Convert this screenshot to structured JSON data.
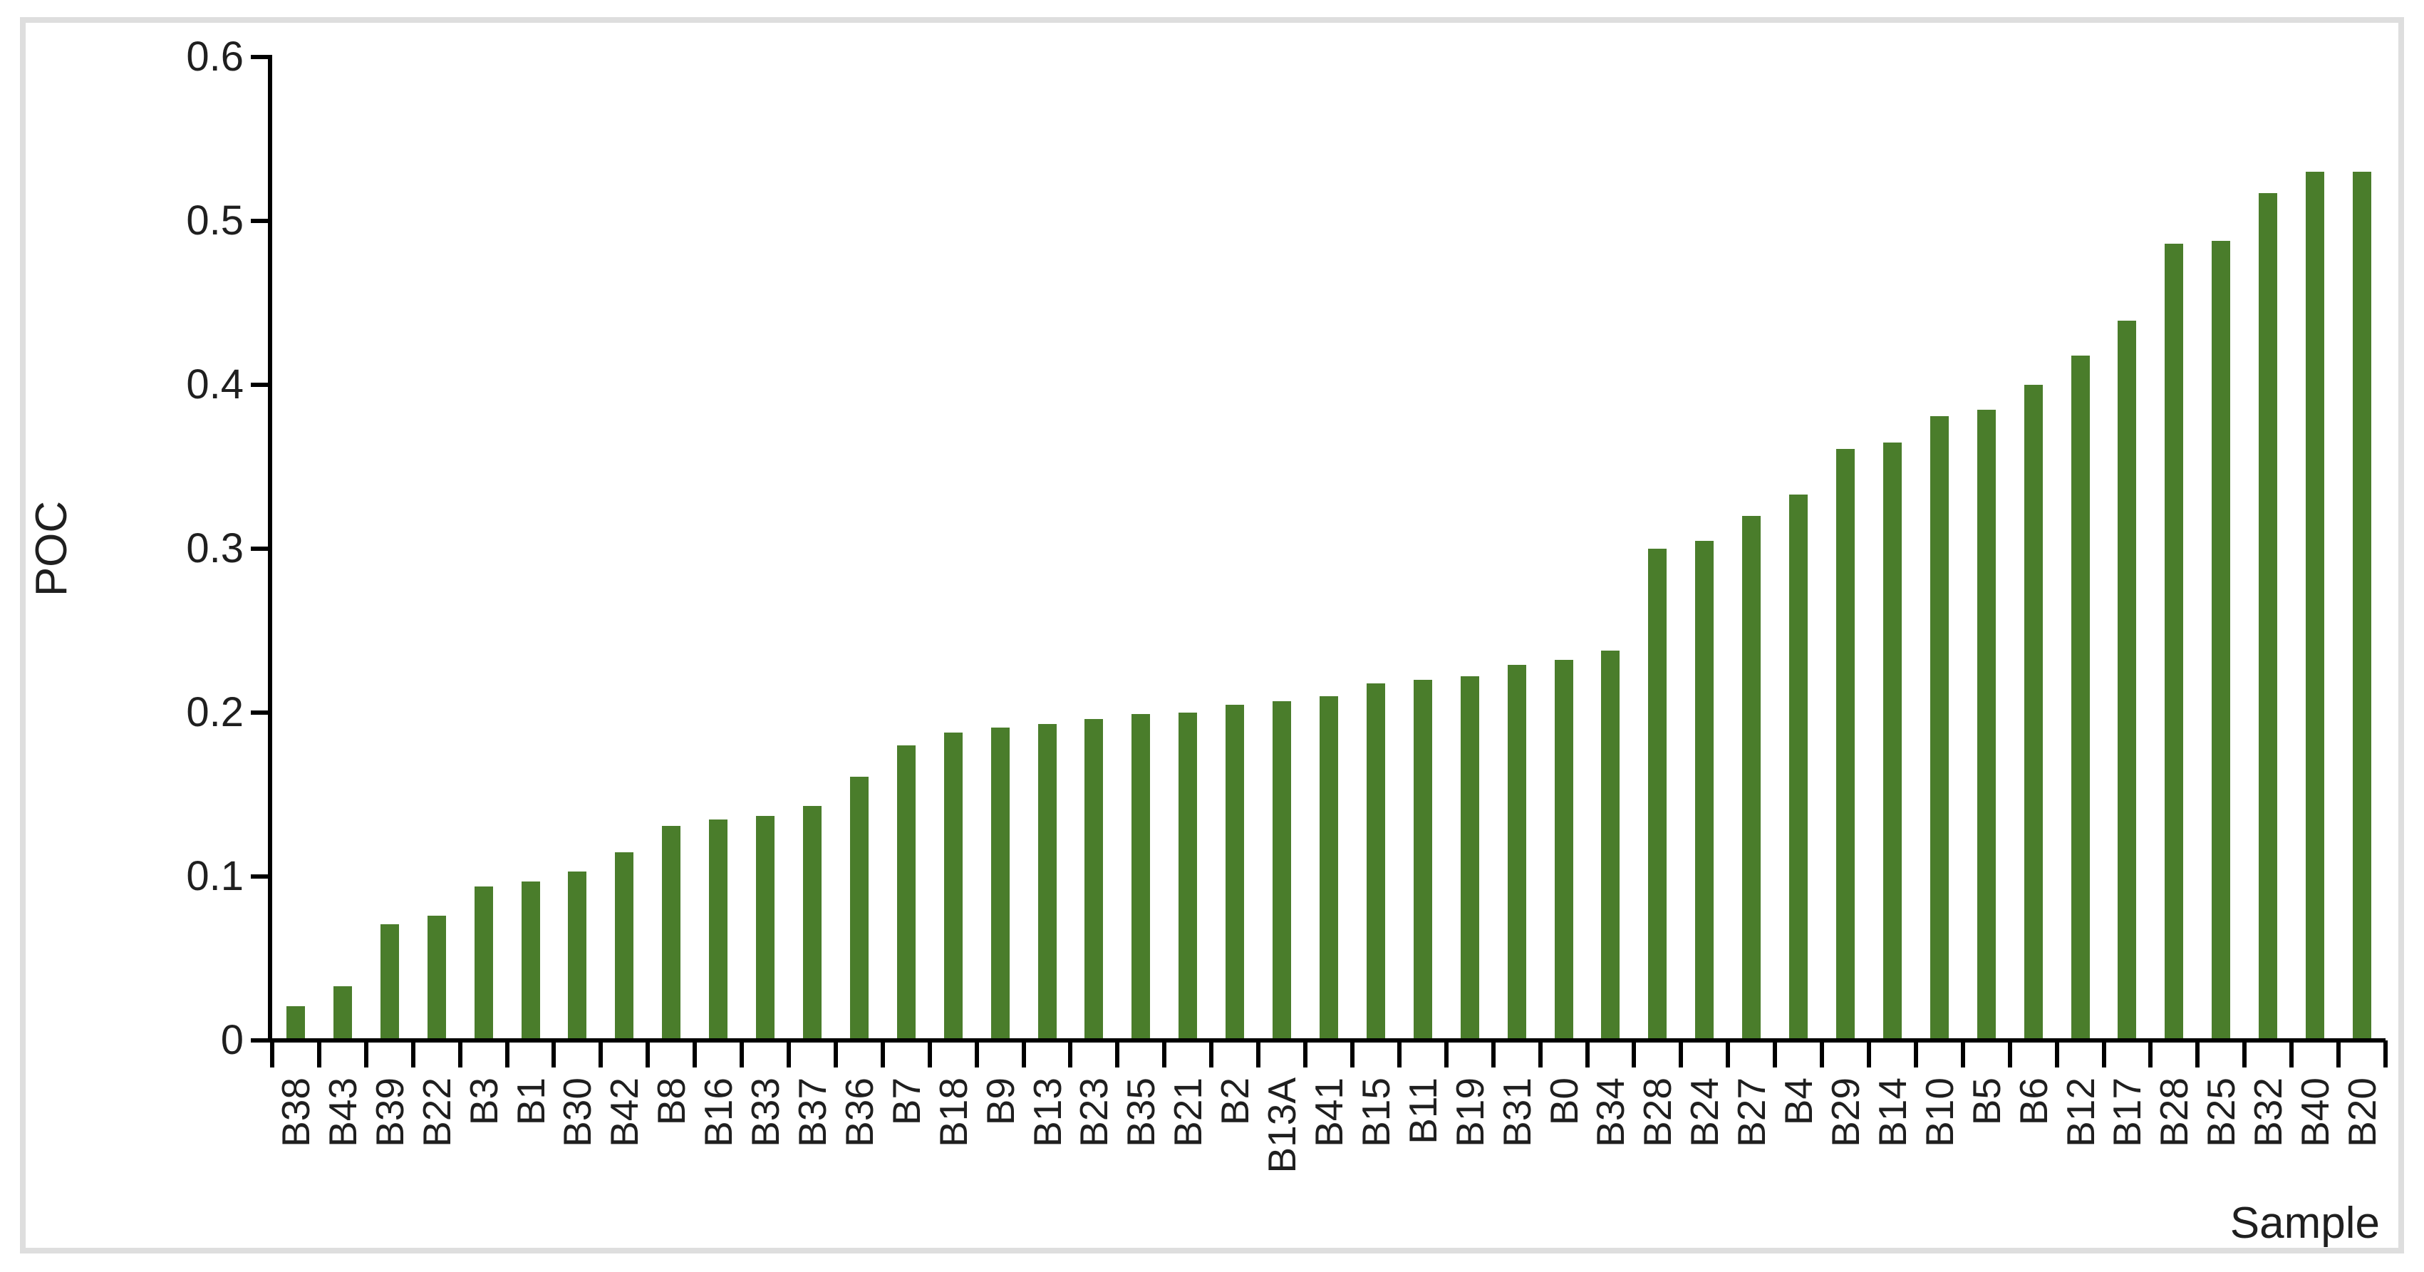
{
  "chart_data": {
    "type": "bar",
    "title": "",
    "xlabel": "Sample",
    "ylabel": "POC",
    "ylim": [
      0,
      0.6
    ],
    "yticks": [
      0,
      0.1,
      0.2,
      0.3,
      0.4,
      0.5,
      0.6
    ],
    "grid": false,
    "legend_position": "none",
    "bar_color": "#4a7d2b",
    "axis_color": "#000000",
    "text_color": "#1f1f1f",
    "frame_color": "#dedede",
    "categories": [
      "B38",
      "B43",
      "B39",
      "B22",
      "B3",
      "B1",
      "B30",
      "B42",
      "B8",
      "B16",
      "B33",
      "B37",
      "B36",
      "B7",
      "B18",
      "B9",
      "B13",
      "B23",
      "B35",
      "B21",
      "B2",
      "B13A",
      "B41",
      "B15",
      "B11",
      "B19",
      "B31",
      "B0",
      "B34",
      "B28",
      "B24",
      "B27",
      "B4",
      "B29",
      "B14",
      "B10",
      "B5",
      "B6",
      "B12",
      "B17",
      "B28",
      "B25",
      "B32",
      "B40",
      "B20"
    ],
    "values": [
      0.021,
      0.033,
      0.071,
      0.076,
      0.094,
      0.097,
      0.103,
      0.115,
      0.131,
      0.135,
      0.137,
      0.143,
      0.161,
      0.18,
      0.188,
      0.191,
      0.193,
      0.196,
      0.199,
      0.2,
      0.205,
      0.207,
      0.21,
      0.218,
      0.22,
      0.222,
      0.229,
      0.232,
      0.238,
      0.3,
      0.305,
      0.32,
      0.333,
      0.361,
      0.365,
      0.381,
      0.385,
      0.4,
      0.418,
      0.439,
      0.486,
      0.488,
      0.517,
      0.53,
      0.53
    ]
  }
}
